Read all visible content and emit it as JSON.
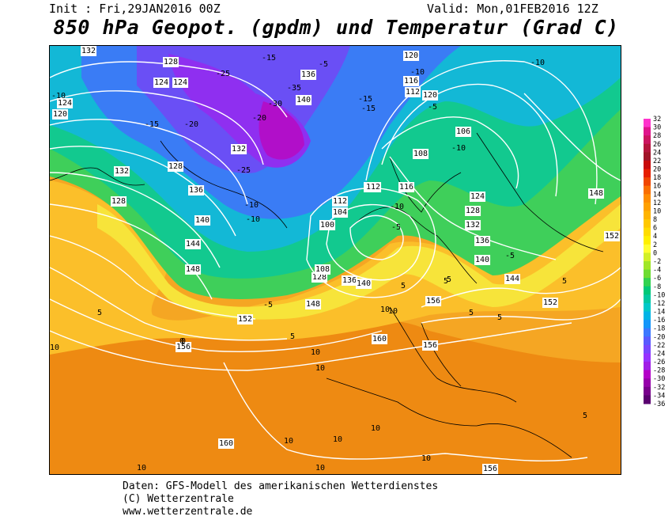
{
  "header": {
    "init": "Init : Fri,29JAN2016 00Z",
    "valid": "Valid: Mon,01FEB2016 12Z",
    "title": "850 hPa Geopot. (gpdm) und Temperatur (Grad C)"
  },
  "footer": {
    "line1": "Daten: GFS-Modell des amerikanischen Wetterdienstes",
    "line2": "(C) Wetterzentrale",
    "line3": "www.wetterzentrale.de"
  },
  "colorbar": {
    "labels": [
      "32",
      "30",
      "28",
      "26",
      "24",
      "22",
      "20",
      "18",
      "16",
      "14",
      "12",
      "10",
      "8",
      "6",
      "4",
      "2",
      "0",
      "-2",
      "-4",
      "-6",
      "-8",
      "-10",
      "-12",
      "-14",
      "-16",
      "-18",
      "-20",
      "-22",
      "-24",
      "-26",
      "-28",
      "-30",
      "-32",
      "-34",
      "-36"
    ],
    "colors": [
      "#ff33cc",
      "#e0148c",
      "#cc1460",
      "#b4143c",
      "#a01428",
      "#c80a0a",
      "#e61e00",
      "#f04600",
      "#fa6e00",
      "#ff8c00",
      "#ffa000",
      "#ffb400",
      "#ffc800",
      "#ffdc00",
      "#fff000",
      "#ffff32",
      "#d2f028",
      "#a0e628",
      "#6edc32",
      "#32d250",
      "#00c878",
      "#00c8a0",
      "#00c8c8",
      "#00b4e6",
      "#1496fa",
      "#3c78ff",
      "#5a5aff",
      "#7846ff",
      "#9632ff",
      "#a01ee6",
      "#b400c8",
      "#9600aa",
      "#78008c",
      "#5a0070"
    ]
  },
  "map": {
    "geopotential_labels": [
      "132",
      "128",
      "124",
      "120",
      "124",
      "128",
      "132",
      "136",
      "140",
      "144",
      "148",
      "152",
      "156",
      "160",
      "140",
      "136",
      "132",
      "128",
      "124",
      "120",
      "116",
      "112",
      "108",
      "104",
      "100",
      "112",
      "116",
      "120",
      "124",
      "128",
      "132",
      "136",
      "140",
      "144",
      "148",
      "152",
      "156",
      "136",
      "140",
      "128",
      "106",
      "108",
      "112",
      "120",
      "148",
      "152",
      "160",
      "156",
      "156"
    ],
    "temperature_labels": [
      "-10",
      "-15",
      "-20",
      "-25",
      "-30",
      "-35",
      "-20",
      "-25",
      "-15",
      "-10",
      "-5",
      "0",
      "5",
      "10",
      "-5",
      "-10",
      "-15",
      "-10",
      "-5",
      "5",
      "10",
      "5",
      "10",
      "10",
      "10",
      "10",
      "10",
      "10",
      "5",
      "-5",
      "-10",
      "-10",
      "-15",
      "-10",
      "-5",
      "5",
      "5",
      "5",
      "0",
      "5",
      "5",
      "10",
      "10",
      "10"
    ]
  }
}
